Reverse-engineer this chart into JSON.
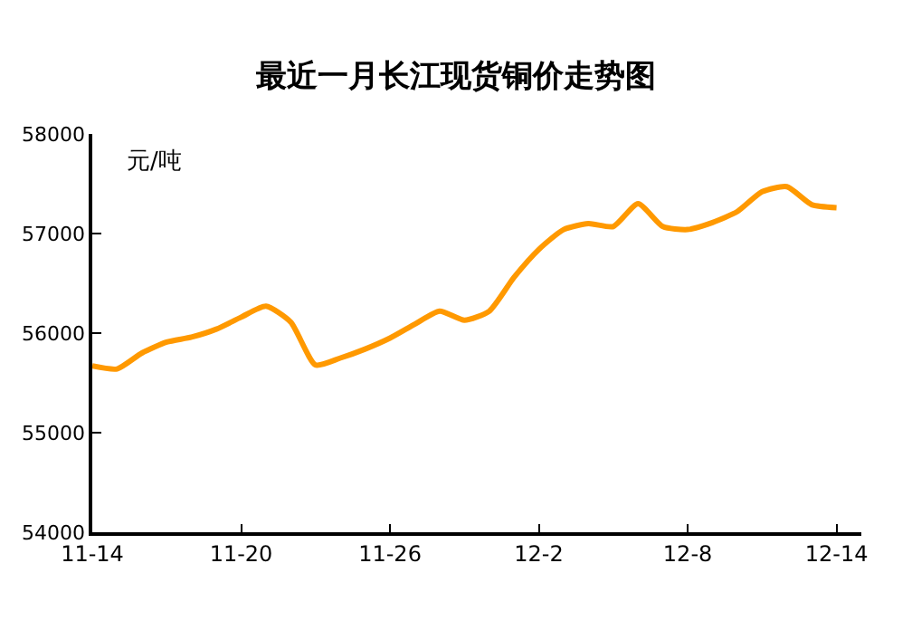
{
  "chart_data": {
    "type": "line",
    "title": "最近一月长江现货铜价走势图",
    "ylabel": "元/吨",
    "x": [
      "--11-14",
      "--11-15",
      "--11-16",
      "--11-17",
      "--11-18",
      "--11-19",
      "--11-20",
      "--11-21",
      "--11-22",
      "--11-23",
      "--11-24",
      "--11-25",
      "--11-26",
      "--11-27",
      "--11-28",
      "--11-29",
      "--11-30",
      "--12-01",
      "--12-02",
      "--12-03",
      "--12-04",
      "--12-05",
      "--12-06",
      "--12-07",
      "--12-08",
      "--12-09",
      "--12-10",
      "--12-11",
      "--12-12",
      "--12-13",
      "--12-14"
    ],
    "series": [
      {
        "color": "#ff9900",
        "values": [
          55670,
          55640,
          55800,
          55910,
          55960,
          56040,
          56160,
          56270,
          56110,
          55680,
          55750,
          55840,
          55950,
          56090,
          56220,
          56130,
          56220,
          56560,
          56840,
          57040,
          57100,
          57070,
          57300,
          57070,
          57040,
          57110,
          57220,
          57420,
          57470,
          57290,
          57260
        ]
      }
    ],
    "xlim": [
      "--11-14",
      "--12-15"
    ],
    "xticks": [
      {
        "value": "--11-14",
        "label": "11-14"
      },
      {
        "value": "--11-20",
        "label": "11-20"
      },
      {
        "value": "--11-26",
        "label": "11-26"
      },
      {
        "value": "--12-02",
        "label": "12-2"
      },
      {
        "value": "--12-08",
        "label": "12-8"
      },
      {
        "value": "--12-14",
        "label": "12-14"
      }
    ],
    "ylim": [
      54000,
      58000
    ],
    "yticks": [
      54000,
      55000,
      56000,
      57000,
      58000
    ],
    "grid": false,
    "marker": "none",
    "line_style": "solid"
  }
}
